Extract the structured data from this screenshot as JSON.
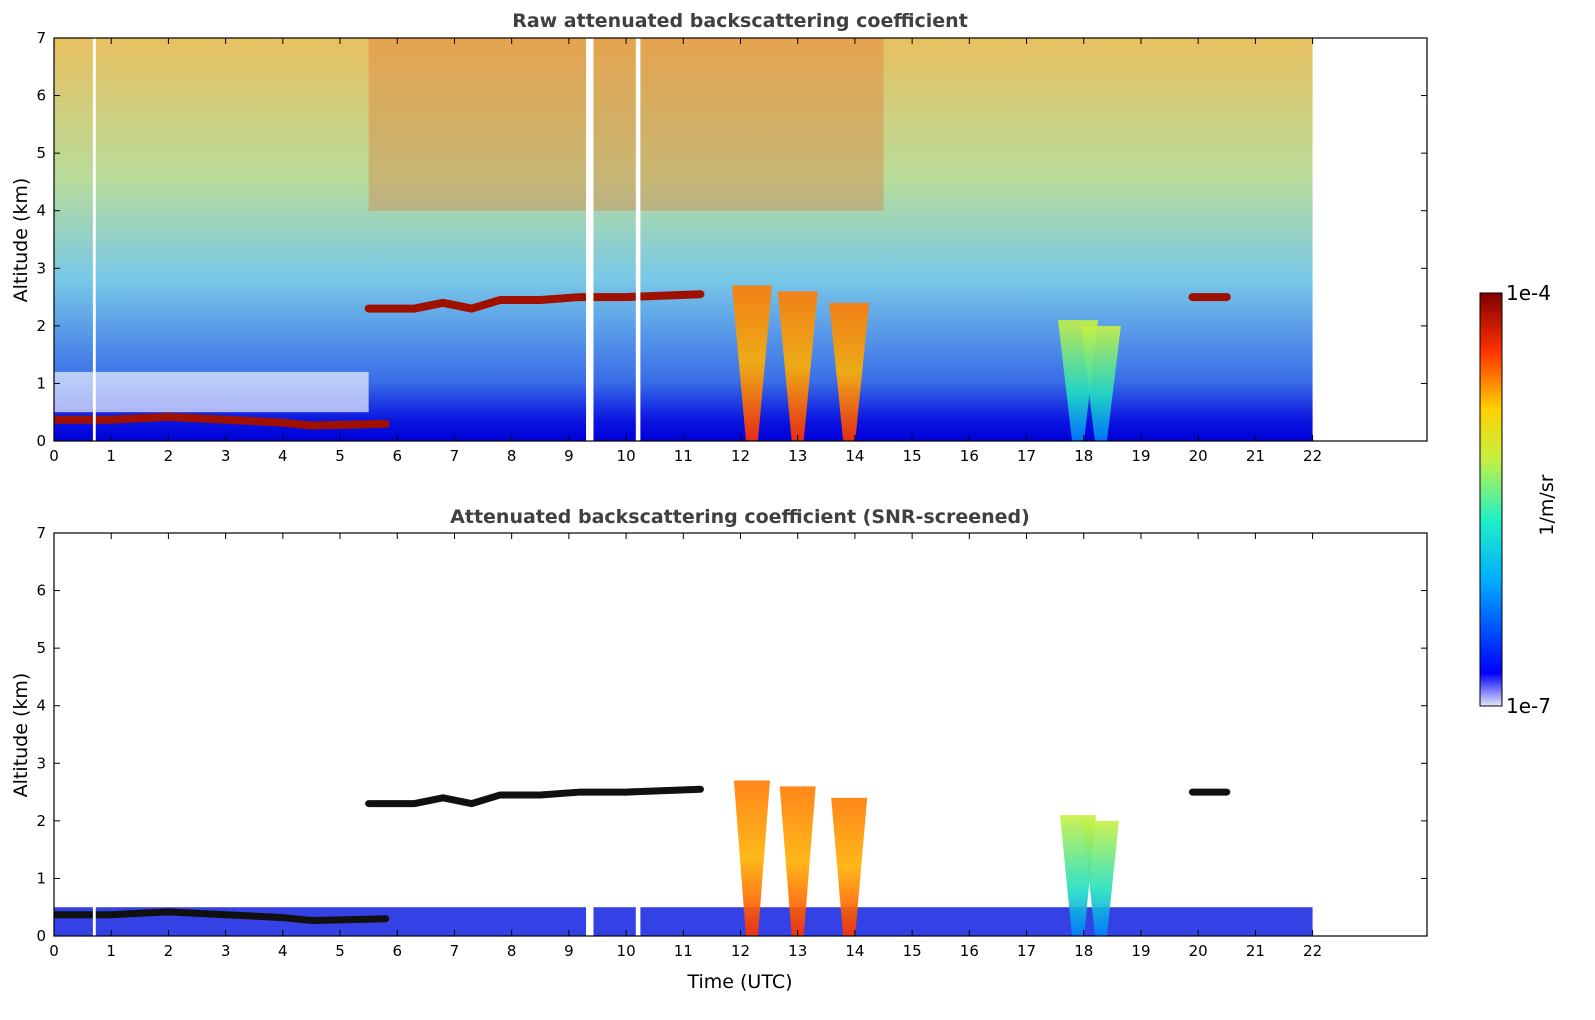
{
  "chart_data": [
    {
      "type": "heatmap",
      "title": "Raw attenuated backscattering coefficient",
      "xlabel": "",
      "ylabel": "Altitude (km)",
      "xlim": [
        0,
        24
      ],
      "ylim": [
        0,
        7
      ],
      "x_ticks": [
        "0",
        "1",
        "2",
        "3",
        "4",
        "5",
        "6",
        "7",
        "8",
        "9",
        "10",
        "11",
        "12",
        "13",
        "14",
        "15",
        "16",
        "17",
        "18",
        "19",
        "20",
        "21",
        "22"
      ],
      "y_ticks": [
        "0",
        "1",
        "2",
        "3",
        "4",
        "5",
        "6",
        "7"
      ],
      "data_extent_hours": [
        0,
        22
      ],
      "gaps_hours": [
        [
          0.68,
          0.73
        ],
        [
          9.3,
          9.43
        ],
        [
          10.17,
          10.25
        ]
      ],
      "layers": [
        {
          "name": "boundary-layer",
          "segments": [
            [
              0.0,
              0.37
            ],
            [
              1.0,
              0.37
            ],
            [
              2.0,
              0.42
            ],
            [
              3.0,
              0.37
            ],
            [
              4.0,
              0.32
            ],
            [
              4.5,
              0.27
            ],
            [
              5.0,
              0.28
            ],
            [
              5.8,
              0.3
            ]
          ]
        },
        {
          "name": "cloud-2km",
          "segments": [
            [
              5.5,
              2.3
            ],
            [
              6.3,
              2.3
            ],
            [
              6.8,
              2.4
            ],
            [
              7.3,
              2.3
            ],
            [
              7.8,
              2.45
            ],
            [
              8.5,
              2.45
            ],
            [
              9.2,
              2.5
            ],
            [
              10.0,
              2.5
            ],
            [
              11.3,
              2.55
            ]
          ]
        },
        {
          "name": "cloud-2km-right",
          "segments": [
            [
              19.9,
              2.5
            ],
            [
              20.5,
              2.5
            ]
          ]
        }
      ],
      "plumes": [
        {
          "x": 12.2,
          "top": 2.7
        },
        {
          "x": 13.0,
          "top": 2.6
        },
        {
          "x": 13.9,
          "top": 2.4
        },
        {
          "x": 17.9,
          "top": 2.1
        },
        {
          "x": 18.3,
          "top": 2.0
        }
      ]
    },
    {
      "type": "heatmap",
      "title": "Attenuated backscattering coefficient (SNR-screened)",
      "xlabel": "Time (UTC)",
      "ylabel": "Altitude (km)",
      "xlim": [
        0,
        24
      ],
      "ylim": [
        0,
        7
      ],
      "x_ticks": [
        "0",
        "1",
        "2",
        "3",
        "4",
        "5",
        "6",
        "7",
        "8",
        "9",
        "10",
        "11",
        "12",
        "13",
        "14",
        "15",
        "16",
        "17",
        "18",
        "19",
        "20",
        "21",
        "22"
      ],
      "y_ticks": [
        "0",
        "1",
        "2",
        "3",
        "4",
        "5",
        "6",
        "7"
      ],
      "data_extent_hours": [
        0,
        22
      ]
    }
  ],
  "colorbar": {
    "label": "1/m/sr",
    "max_label": "1e-4",
    "min_label": "1e-7",
    "colormap": "jet",
    "scale": "log"
  }
}
